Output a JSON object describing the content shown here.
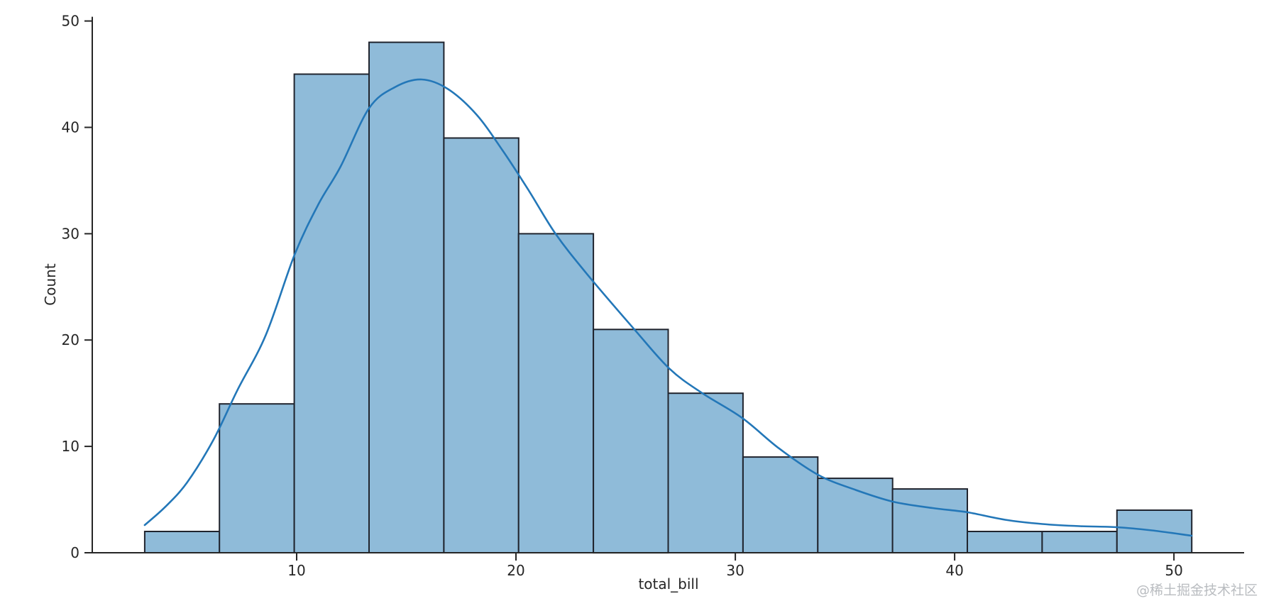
{
  "watermark": {
    "text": "@稀土掘金技术社区",
    "color": "#b9bcc0"
  },
  "chart_data": {
    "type": "bar",
    "subtype": "histogram_with_kde",
    "title": "",
    "xlabel": "total_bill",
    "ylabel": "Count",
    "x_ticks": [
      10,
      20,
      30,
      40,
      50
    ],
    "y_ticks": [
      0,
      10,
      20,
      30,
      40,
      50
    ],
    "xlim": [
      0.68,
      53.2
    ],
    "ylim": [
      0,
      50.4
    ],
    "grid": false,
    "legend": false,
    "bins": {
      "start": 3.07,
      "width": 3.41,
      "categories": [
        "3.07-6.48",
        "6.48-9.89",
        "9.89-13.30",
        "13.30-16.71",
        "16.71-20.12",
        "20.12-23.53",
        "23.53-26.94",
        "26.94-30.35",
        "30.35-33.76",
        "33.76-37.17",
        "37.17-40.58",
        "40.58-43.99",
        "43.99-47.40",
        "47.40-50.81"
      ]
    },
    "values": [
      2,
      14,
      45,
      48,
      39,
      30,
      21,
      15,
      9,
      7,
      6,
      2,
      2,
      4
    ],
    "series": [
      {
        "name": "kde",
        "type": "line",
        "points": [
          [
            3.07,
            2.6
          ],
          [
            4.0,
            4.3
          ],
          [
            5.0,
            6.6
          ],
          [
            6.2,
            10.6
          ],
          [
            7.3,
            15.3
          ],
          [
            8.6,
            20.5
          ],
          [
            9.9,
            28.0
          ],
          [
            11.0,
            32.8
          ],
          [
            12.0,
            36.3
          ],
          [
            13.3,
            41.8
          ],
          [
            14.5,
            43.8
          ],
          [
            15.7,
            44.5
          ],
          [
            16.9,
            43.6
          ],
          [
            18.2,
            41.2
          ],
          [
            19.4,
            37.8
          ],
          [
            20.6,
            34.0
          ],
          [
            21.8,
            30.0
          ],
          [
            23.2,
            26.3
          ],
          [
            25.4,
            21.0
          ],
          [
            27.0,
            17.3
          ],
          [
            28.5,
            15.0
          ],
          [
            30.3,
            12.7
          ],
          [
            32.0,
            9.8
          ],
          [
            33.8,
            7.3
          ],
          [
            35.5,
            5.9
          ],
          [
            37.2,
            4.8
          ],
          [
            39.0,
            4.2
          ],
          [
            40.6,
            3.8
          ],
          [
            42.3,
            3.1
          ],
          [
            44.0,
            2.7
          ],
          [
            45.7,
            2.5
          ],
          [
            47.4,
            2.4
          ],
          [
            49.0,
            2.1
          ],
          [
            50.81,
            1.6
          ]
        ]
      }
    ],
    "colors": {
      "bar_fill": "#8fbbd9",
      "bar_edge": "#20242e",
      "kde_line": "#2377b8",
      "axis": "#262626",
      "text": "#262626",
      "background": "#ffffff"
    }
  }
}
